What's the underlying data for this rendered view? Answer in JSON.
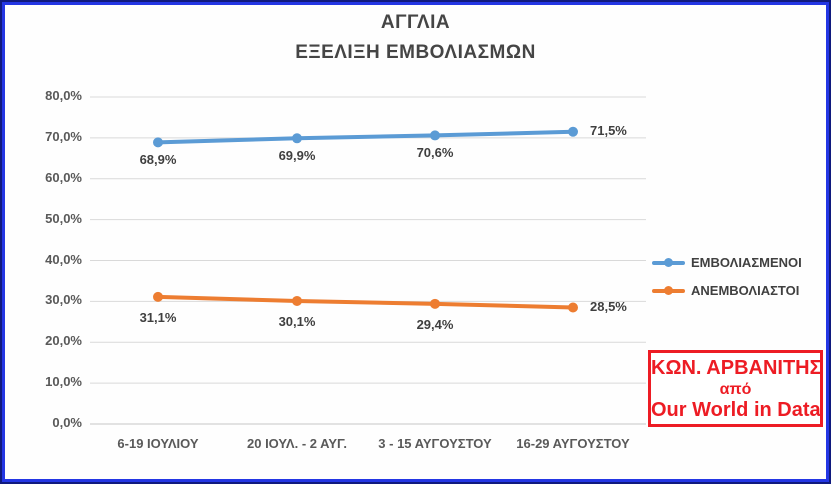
{
  "window": {
    "border_color": "#2336e4",
    "border_outer_color": "#101a7e"
  },
  "chart_data": {
    "type": "line",
    "title": "ΑΓΓΛΙΑ",
    "subtitle": "ΕΞΕΛΙΞΗ ΕΜΒΟΛΙΑΣΜΩΝ",
    "categories": [
      "6-19 ΙΟΥΛΙΟΥ",
      "20 ΙΟΥΛ. - 2 ΑΥΓ.",
      "3 - 15 ΑΥΓΟΥΣΤΟΥ",
      "16-29 ΑΥΓΟΥΣΤΟΥ"
    ],
    "series": [
      {
        "name": "ΕΜΒΟΛΙΑΣΜΕΝΟΙ",
        "color": "#5B9BD5",
        "values": [
          68.9,
          69.9,
          70.6,
          71.5
        ],
        "labels": [
          "68,9%",
          "69,9%",
          "70,6%",
          "71,5%"
        ]
      },
      {
        "name": "ΑΝΕΜΒΟΛΙΑΣΤΟΙ",
        "color": "#ED7D31",
        "values": [
          31.1,
          30.1,
          29.4,
          28.5
        ],
        "labels": [
          "31,1%",
          "30,1%",
          "29,4%",
          "28,5%"
        ]
      }
    ],
    "y_axis": {
      "min": 0,
      "max": 80,
      "step": 10,
      "tick_labels": [
        "80,0%",
        "70,0%",
        "60,0%",
        "50,0%",
        "40,0%",
        "30,0%",
        "20,0%",
        "10,0%",
        "0,0%"
      ]
    },
    "grid": true,
    "legend_position": "right",
    "xlabel": "",
    "ylabel": ""
  },
  "watermark": {
    "line1": "ΚΩΝ. ΑΡΒΑΝΙΤΗΣ",
    "line2": "από",
    "line3": "Our World in Data",
    "color": "#ed1c24"
  }
}
